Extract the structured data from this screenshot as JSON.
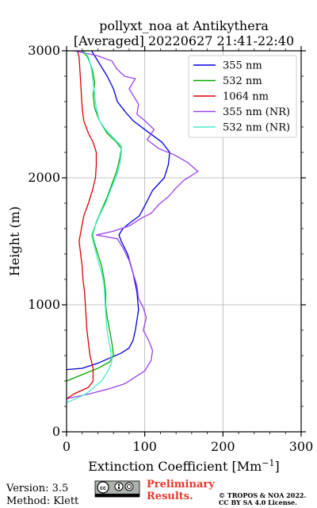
{
  "chart_data": {
    "type": "line",
    "title_line1": "pollyxt_noa at Antikythera",
    "title_line2": "[Averaged] 20220627 21:41-22:40",
    "xlabel": "Extinction Coefficient [Mm",
    "xlabel_sup": "−1",
    "xlabel_end": "]",
    "ylabel": "Height (m)",
    "xlim": [
      0,
      300
    ],
    "ylim": [
      0,
      3000
    ],
    "xticks": [
      0,
      100,
      200,
      300
    ],
    "yticks": [
      0,
      1000,
      2000,
      3000
    ],
    "grid": true,
    "legend_position": "top-right",
    "series": [
      {
        "name": "355 nm",
        "color": "#0000dd",
        "points": [
          [
            0,
            490
          ],
          [
            20,
            500
          ],
          [
            40,
            540
          ],
          [
            55,
            580
          ],
          [
            70,
            620
          ],
          [
            80,
            660
          ],
          [
            85,
            720
          ],
          [
            88,
            800
          ],
          [
            90,
            880
          ],
          [
            92,
            960
          ],
          [
            90,
            1100
          ],
          [
            85,
            1250
          ],
          [
            78,
            1400
          ],
          [
            70,
            1500
          ],
          [
            67,
            1550
          ],
          [
            72,
            1600
          ],
          [
            82,
            1650
          ],
          [
            93,
            1700
          ],
          [
            100,
            1780
          ],
          [
            110,
            1900
          ],
          [
            125,
            2000
          ],
          [
            130,
            2100
          ],
          [
            132,
            2200
          ],
          [
            122,
            2280
          ],
          [
            100,
            2380
          ],
          [
            85,
            2450
          ],
          [
            75,
            2520
          ],
          [
            65,
            2600
          ],
          [
            60,
            2700
          ],
          [
            52,
            2800
          ],
          [
            42,
            2900
          ],
          [
            32,
            3000
          ]
        ]
      },
      {
        "name": "532 nm",
        "color": "#00aa00",
        "points": [
          [
            0,
            400
          ],
          [
            20,
            450
          ],
          [
            40,
            500
          ],
          [
            55,
            550
          ],
          [
            60,
            600
          ],
          [
            58,
            700
          ],
          [
            55,
            800
          ],
          [
            52,
            900
          ],
          [
            50,
            1000
          ],
          [
            50,
            1100
          ],
          [
            48,
            1200
          ],
          [
            45,
            1300
          ],
          [
            40,
            1400
          ],
          [
            35,
            1500
          ],
          [
            33,
            1550
          ],
          [
            38,
            1650
          ],
          [
            45,
            1750
          ],
          [
            52,
            1850
          ],
          [
            58,
            1950
          ],
          [
            64,
            2050
          ],
          [
            68,
            2150
          ],
          [
            70,
            2230
          ],
          [
            64,
            2280
          ],
          [
            52,
            2350
          ],
          [
            42,
            2450
          ],
          [
            36,
            2550
          ],
          [
            34,
            2650
          ],
          [
            36,
            2750
          ],
          [
            33,
            2850
          ],
          [
            27,
            2950
          ],
          [
            20,
            3000
          ]
        ]
      },
      {
        "name": "1064 nm",
        "color": "#dd0000",
        "points": [
          [
            0,
            260
          ],
          [
            10,
            300
          ],
          [
            28,
            350
          ],
          [
            34,
            400
          ],
          [
            34,
            500
          ],
          [
            30,
            600
          ],
          [
            28,
            700
          ],
          [
            26,
            800
          ],
          [
            25,
            900
          ],
          [
            24,
            1000
          ],
          [
            23,
            1100
          ],
          [
            21,
            1200
          ],
          [
            20,
            1300
          ],
          [
            18,
            1400
          ],
          [
            16,
            1500
          ],
          [
            19,
            1600
          ],
          [
            22,
            1700
          ],
          [
            28,
            1800
          ],
          [
            33,
            1900
          ],
          [
            37,
            2000
          ],
          [
            38,
            2100
          ],
          [
            38,
            2200
          ],
          [
            34,
            2280
          ],
          [
            28,
            2350
          ],
          [
            22,
            2450
          ],
          [
            20,
            2550
          ],
          [
            19,
            2650
          ],
          [
            18,
            2750
          ],
          [
            17,
            2850
          ],
          [
            16,
            2950
          ],
          [
            14,
            3000
          ]
        ]
      },
      {
        "name": "355 nm (NR)",
        "color": "#9a40ee",
        "points": [
          [
            0,
            260
          ],
          [
            30,
            300
          ],
          [
            55,
            340
          ],
          [
            75,
            380
          ],
          [
            100,
            480
          ],
          [
            108,
            560
          ],
          [
            110,
            640
          ],
          [
            105,
            720
          ],
          [
            98,
            800
          ],
          [
            102,
            900
          ],
          [
            98,
            980
          ],
          [
            92,
            1050
          ],
          [
            90,
            1150
          ],
          [
            85,
            1250
          ],
          [
            80,
            1350
          ],
          [
            72,
            1450
          ],
          [
            65,
            1520
          ],
          [
            38,
            1550
          ],
          [
            60,
            1580
          ],
          [
            80,
            1620
          ],
          [
            95,
            1680
          ],
          [
            108,
            1720
          ],
          [
            118,
            1790
          ],
          [
            130,
            1850
          ],
          [
            140,
            1920
          ],
          [
            150,
            1980
          ],
          [
            168,
            2050
          ],
          [
            155,
            2120
          ],
          [
            138,
            2180
          ],
          [
            118,
            2230
          ],
          [
            103,
            2300
          ],
          [
            112,
            2380
          ],
          [
            100,
            2450
          ],
          [
            90,
            2500
          ],
          [
            92,
            2580
          ],
          [
            85,
            2650
          ],
          [
            80,
            2700
          ],
          [
            88,
            2780
          ],
          [
            74,
            2800
          ],
          [
            64,
            2860
          ],
          [
            58,
            2920
          ],
          [
            40,
            2960
          ],
          [
            10,
            3000
          ]
        ]
      },
      {
        "name": "532 nm (NR)",
        "color": "#44eecc",
        "points": [
          [
            0,
            230
          ],
          [
            12,
            260
          ],
          [
            25,
            300
          ],
          [
            45,
            400
          ],
          [
            55,
            500
          ],
          [
            58,
            560
          ],
          [
            56,
            650
          ],
          [
            53,
            750
          ],
          [
            51,
            850
          ],
          [
            50,
            950
          ],
          [
            49,
            1050
          ],
          [
            48,
            1150
          ],
          [
            45,
            1250
          ],
          [
            40,
            1350
          ],
          [
            36,
            1450
          ],
          [
            32,
            1550
          ],
          [
            35,
            1600
          ],
          [
            42,
            1700
          ],
          [
            50,
            1800
          ],
          [
            56,
            1900
          ],
          [
            63,
            2000
          ],
          [
            68,
            2100
          ],
          [
            70,
            2200
          ],
          [
            70,
            2250
          ],
          [
            62,
            2300
          ],
          [
            50,
            2380
          ],
          [
            42,
            2450
          ],
          [
            38,
            2550
          ],
          [
            36,
            2650
          ],
          [
            34,
            2750
          ],
          [
            32,
            2850
          ],
          [
            28,
            2950
          ],
          [
            22,
            3000
          ]
        ]
      }
    ]
  },
  "footer": {
    "version": "Version: 3.5",
    "method": "Method: Klett",
    "preliminary_line1": "Preliminary",
    "preliminary_line2": "Results.",
    "copyright_line1": "© TROPOS & NOA 2022.",
    "copyright_line2": "CC BY SA 4.0 License.",
    "license_badge": "cc-by-sa-badge"
  }
}
